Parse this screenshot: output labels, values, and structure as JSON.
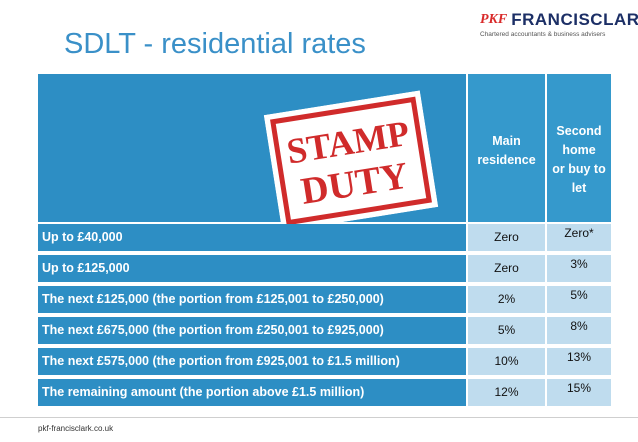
{
  "slide": {
    "title": "SDLT - residential rates",
    "footer": "pkf-francisclark.co.uk"
  },
  "logo": {
    "mark": "PKF",
    "name": "FRANCISCLARK",
    "tagline": "Chartered accountants & business advisers"
  },
  "stamp": {
    "line1": "STAMP",
    "line2": "DUTY"
  },
  "table": {
    "col_main": [
      "Main",
      "residence"
    ],
    "col_second": [
      "Second",
      "home",
      "or buy to let"
    ],
    "rows": [
      {
        "band": "Up to £40,000",
        "main": "Zero",
        "second": "Zero*"
      },
      {
        "band": "Up to £125,000",
        "main": "Zero",
        "second": "3%"
      },
      {
        "band": "The next £125,000 (the portion from £125,001 to £250,000)",
        "main": "2%",
        "second": "5%"
      },
      {
        "band": "The next £675,000 (the portion from £250,001 to £925,000)",
        "main": "5%",
        "second": "8%"
      },
      {
        "band": "The next £575,000 (the portion from £925,001 to £1.5 million)",
        "main": "10%",
        "second": "13%"
      },
      {
        "band": "The remaining amount (the portion above £1.5 million)",
        "main": "12%",
        "second": "15%"
      }
    ]
  },
  "colors": {
    "title": "#3a90c8",
    "header": "#2d8ec4",
    "cell": "#bfdcee",
    "stamp": "#d02b2b"
  }
}
